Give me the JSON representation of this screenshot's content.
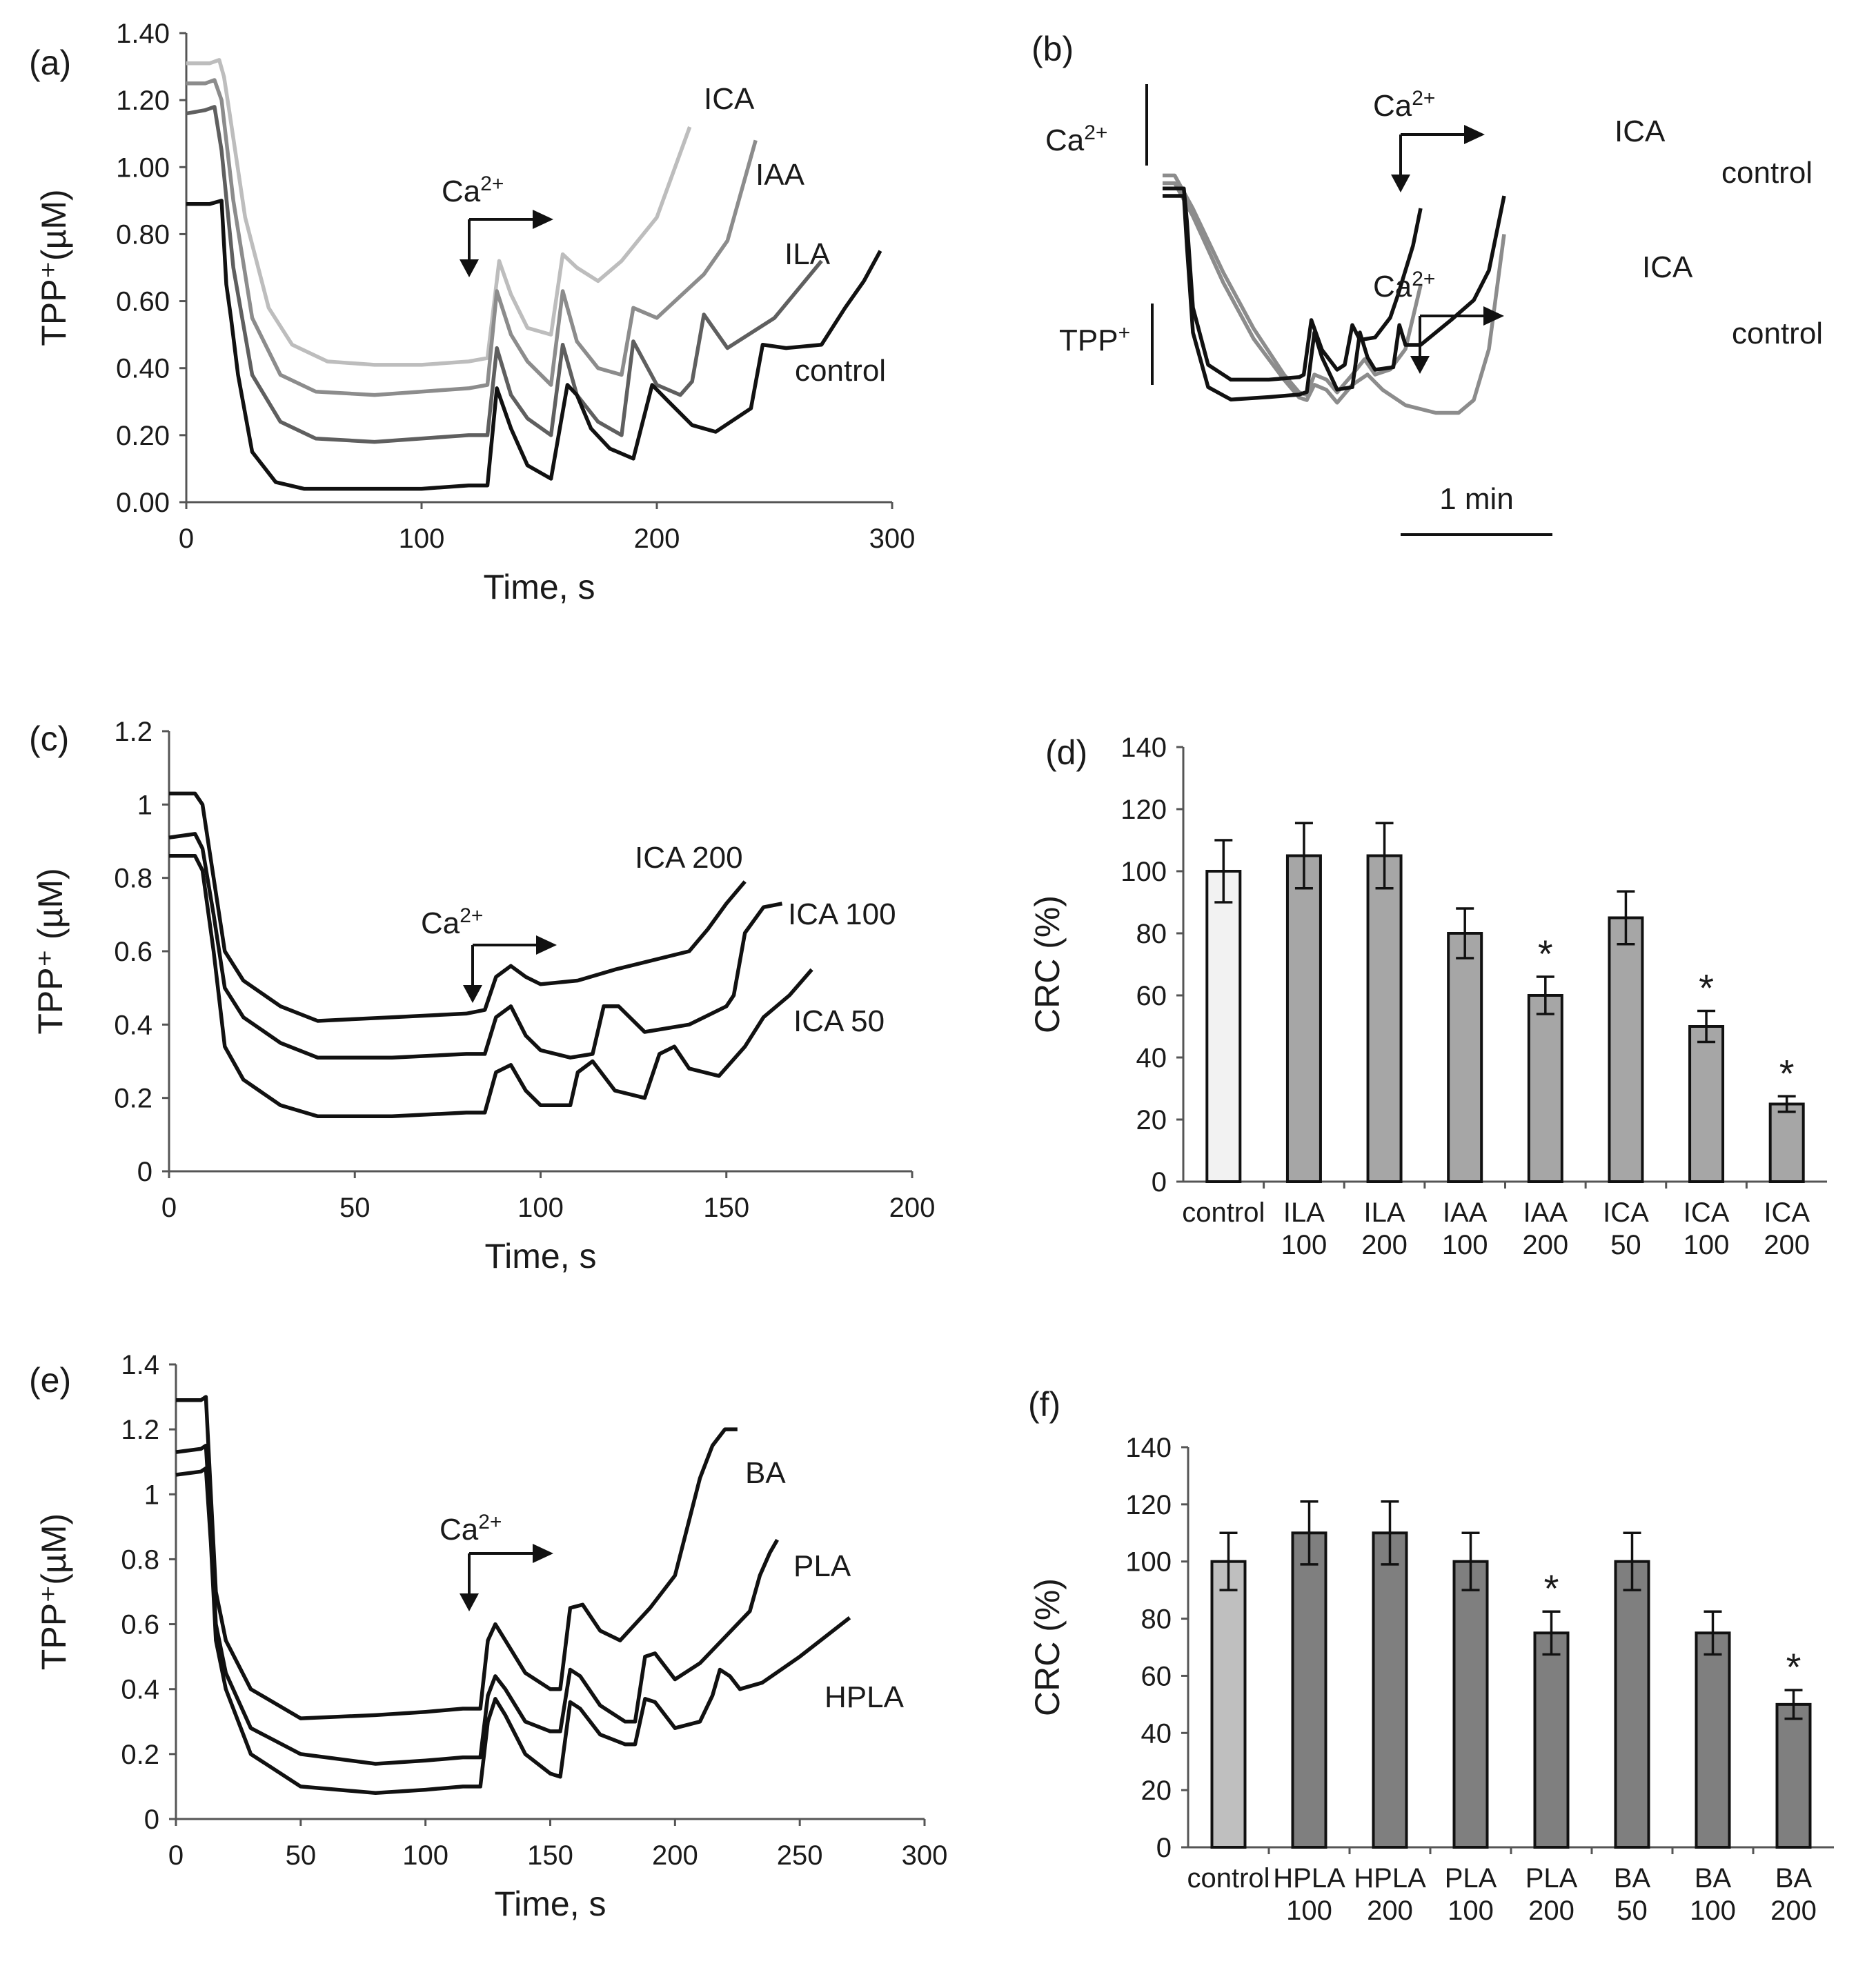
{
  "chart_data": [
    {
      "panel": "(a)",
      "type": "line",
      "xlabel": "Time, s",
      "ylabel": "TPP⁺(µM)",
      "xlim": [
        0,
        300
      ],
      "ylim": [
        0,
        1.4
      ],
      "xticks": [
        "0",
        "100",
        "200",
        "300"
      ],
      "yticks": [
        "0.00",
        "0.20",
        "0.40",
        "0.60",
        "0.80",
        "1.00",
        "1.20",
        "1.40"
      ],
      "annotation": "Ca2+",
      "series": [
        {
          "name": "ICA",
          "color": "#bdbdbd",
          "x": [
            0,
            10,
            14,
            16,
            18,
            25,
            35,
            45,
            60,
            80,
            100,
            120,
            128,
            133,
            138,
            145,
            155,
            160,
            166,
            175,
            185,
            200,
            214
          ],
          "y": [
            1.31,
            1.31,
            1.32,
            1.27,
            1.18,
            0.85,
            0.58,
            0.47,
            0.42,
            0.41,
            0.41,
            0.42,
            0.43,
            0.72,
            0.62,
            0.52,
            0.5,
            0.74,
            0.7,
            0.66,
            0.72,
            0.85,
            1.12
          ]
        },
        {
          "name": "IAA",
          "color": "#8c8c8c",
          "x": [
            0,
            8,
            12,
            15,
            20,
            28,
            40,
            55,
            80,
            100,
            120,
            128,
            132,
            138,
            145,
            155,
            160,
            166,
            175,
            185,
            190,
            200,
            220,
            230,
            242
          ],
          "y": [
            1.25,
            1.25,
            1.26,
            1.2,
            0.9,
            0.55,
            0.38,
            0.33,
            0.32,
            0.33,
            0.34,
            0.35,
            0.63,
            0.5,
            0.42,
            0.35,
            0.63,
            0.48,
            0.4,
            0.38,
            0.58,
            0.55,
            0.68,
            0.78,
            1.08
          ]
        },
        {
          "name": "ILA",
          "color": "#5f5f5f",
          "x": [
            0,
            8,
            12,
            15,
            20,
            28,
            40,
            55,
            80,
            100,
            120,
            128,
            132,
            138,
            145,
            155,
            160,
            166,
            175,
            185,
            190,
            200,
            210,
            215,
            220,
            230,
            250,
            270
          ],
          "y": [
            1.16,
            1.17,
            1.18,
            1.05,
            0.7,
            0.38,
            0.24,
            0.19,
            0.18,
            0.19,
            0.2,
            0.2,
            0.46,
            0.32,
            0.25,
            0.2,
            0.47,
            0.32,
            0.24,
            0.2,
            0.48,
            0.35,
            0.32,
            0.36,
            0.56,
            0.46,
            0.55,
            0.72
          ]
        },
        {
          "name": "control",
          "color": "#111111",
          "x": [
            0,
            10,
            15,
            17,
            19,
            22,
            28,
            38,
            50,
            70,
            100,
            120,
            128,
            132,
            138,
            145,
            155,
            162,
            166,
            172,
            180,
            190,
            198,
            205,
            215,
            225,
            240,
            245,
            255,
            270,
            280,
            288,
            295
          ],
          "y": [
            0.89,
            0.89,
            0.9,
            0.65,
            0.55,
            0.38,
            0.15,
            0.06,
            0.04,
            0.04,
            0.04,
            0.05,
            0.05,
            0.34,
            0.22,
            0.11,
            0.07,
            0.35,
            0.32,
            0.22,
            0.16,
            0.13,
            0.35,
            0.3,
            0.23,
            0.21,
            0.28,
            0.47,
            0.46,
            0.47,
            0.58,
            0.66,
            0.75
          ]
        }
      ]
    },
    {
      "panel": "(b)",
      "type": "line",
      "annotation_upper": "Ca2+",
      "annotation_lower": "Ca2+",
      "scale_label_upper": "Ca²⁺",
      "scale_label_lower": "TPP⁺",
      "time_scale": "1 min",
      "series": [
        {
          "name": "ICA",
          "group": "Ca2+",
          "color": "#8c8c8c",
          "t": [
            0,
            0.08,
            0.2,
            0.4,
            0.6,
            0.8,
            0.9,
            0.95,
            1.0,
            1.08,
            1.15,
            1.25,
            1.33,
            1.4,
            1.5,
            1.6,
            1.7
          ],
          "v": [
            0.98,
            0.98,
            0.85,
            0.6,
            0.38,
            0.2,
            0.13,
            0.12,
            0.2,
            0.18,
            0.13,
            0.2,
            0.26,
            0.2,
            0.22,
            0.3,
            0.55
          ]
        },
        {
          "name": "control",
          "group": "Ca2+",
          "color": "#8c8c8c",
          "t": [
            0,
            0.08,
            0.2,
            0.4,
            0.6,
            0.8,
            0.9,
            0.95,
            1.0,
            1.08,
            1.15,
            1.25,
            1.35,
            1.45,
            1.6,
            1.8,
            1.95,
            2.05,
            2.15,
            2.25
          ],
          "v": [
            0.95,
            0.95,
            0.82,
            0.56,
            0.34,
            0.18,
            0.11,
            0.1,
            0.16,
            0.14,
            0.09,
            0.16,
            0.2,
            0.14,
            0.08,
            0.05,
            0.05,
            0.1,
            0.3,
            0.75
          ]
        },
        {
          "name": "ICA",
          "group": "TPP+",
          "color": "#111111",
          "t": [
            0,
            0.14,
            0.16,
            0.2,
            0.3,
            0.45,
            0.7,
            0.9,
            0.93,
            0.98,
            1.05,
            1.15,
            1.2,
            1.25,
            1.3,
            1.4,
            1.5,
            1.55,
            1.65,
            1.7
          ],
          "v": [
            0.93,
            0.93,
            0.8,
            0.45,
            0.22,
            0.16,
            0.16,
            0.17,
            0.18,
            0.4,
            0.28,
            0.2,
            0.22,
            0.38,
            0.32,
            0.33,
            0.41,
            0.5,
            0.7,
            0.85
          ]
        },
        {
          "name": "control",
          "group": "TPP+",
          "color": "#111111",
          "t": [
            0,
            0.14,
            0.16,
            0.2,
            0.3,
            0.45,
            0.7,
            0.9,
            0.95,
            1.0,
            1.05,
            1.15,
            1.25,
            1.3,
            1.35,
            1.4,
            1.52,
            1.56,
            1.6,
            1.7,
            1.9,
            2.05,
            2.15,
            2.25
          ],
          "v": [
            0.9,
            0.9,
            0.7,
            0.35,
            0.13,
            0.08,
            0.09,
            0.1,
            0.11,
            0.35,
            0.25,
            0.12,
            0.13,
            0.35,
            0.25,
            0.2,
            0.21,
            0.38,
            0.3,
            0.3,
            0.4,
            0.48,
            0.6,
            0.9
          ]
        }
      ]
    },
    {
      "panel": "(c)",
      "type": "line",
      "xlabel": "Time, s",
      "ylabel": "TPP⁺ (µM)",
      "xlim": [
        0,
        200
      ],
      "ylim": [
        0,
        1.2
      ],
      "xticks": [
        "0",
        "50",
        "100",
        "150",
        "200"
      ],
      "yticks": [
        "0",
        "0.2",
        "0.4",
        "0.6",
        "0.8",
        "1",
        "1.2"
      ],
      "annotation": "Ca2+",
      "series": [
        {
          "name": "ICA 200",
          "color": "#111111",
          "x": [
            0,
            7,
            9,
            12,
            15,
            20,
            30,
            40,
            60,
            80,
            85,
            88,
            92,
            96,
            100,
            110,
            120,
            140,
            145,
            150,
            155
          ],
          "y": [
            1.03,
            1.03,
            1.0,
            0.8,
            0.6,
            0.52,
            0.45,
            0.41,
            0.42,
            0.43,
            0.44,
            0.53,
            0.56,
            0.53,
            0.51,
            0.52,
            0.55,
            0.6,
            0.66,
            0.73,
            0.79
          ]
        },
        {
          "name": "ICA 100",
          "color": "#111111",
          "x": [
            0,
            7,
            9,
            12,
            15,
            20,
            30,
            40,
            60,
            80,
            85,
            88,
            92,
            96,
            100,
            108,
            114,
            117,
            121,
            128,
            140,
            150,
            152,
            155,
            160,
            165
          ],
          "y": [
            0.91,
            0.92,
            0.88,
            0.7,
            0.5,
            0.42,
            0.35,
            0.31,
            0.31,
            0.32,
            0.32,
            0.42,
            0.45,
            0.37,
            0.33,
            0.31,
            0.32,
            0.45,
            0.45,
            0.38,
            0.4,
            0.45,
            0.48,
            0.65,
            0.72,
            0.73
          ]
        },
        {
          "name": "ICA 50",
          "color": "#111111",
          "x": [
            0,
            7,
            9,
            12,
            15,
            20,
            30,
            40,
            60,
            80,
            85,
            88,
            92,
            96,
            100,
            108,
            110,
            114,
            120,
            128,
            132,
            136,
            140,
            148,
            155,
            160,
            167,
            173
          ],
          "y": [
            0.86,
            0.86,
            0.82,
            0.6,
            0.34,
            0.25,
            0.18,
            0.15,
            0.15,
            0.16,
            0.16,
            0.27,
            0.29,
            0.22,
            0.18,
            0.18,
            0.27,
            0.3,
            0.22,
            0.2,
            0.32,
            0.34,
            0.28,
            0.26,
            0.34,
            0.42,
            0.48,
            0.55
          ]
        }
      ]
    },
    {
      "panel": "(d)",
      "type": "bar",
      "ylabel": "CRC (%)",
      "ylim": [
        0,
        140
      ],
      "yticks": [
        "0",
        "20",
        "40",
        "60",
        "80",
        "100",
        "120",
        "140"
      ],
      "categories": [
        [
          "control"
        ],
        [
          "ILA",
          "100"
        ],
        [
          "ILA",
          "200"
        ],
        [
          "IAA",
          "100"
        ],
        [
          "IAA",
          "200"
        ],
        [
          "ICA",
          "50"
        ],
        [
          "ICA",
          "100"
        ],
        [
          "ICA",
          "200"
        ]
      ],
      "values": [
        100,
        105,
        105,
        80,
        60,
        85,
        50,
        25
      ],
      "errors": [
        10,
        10.5,
        10.5,
        8,
        6,
        8.5,
        5,
        2.5
      ],
      "significant": [
        false,
        false,
        false,
        false,
        true,
        false,
        true,
        true
      ],
      "significance_marker": "*",
      "colors": [
        "#f2f2f2",
        "#a6a6a6",
        "#a6a6a6",
        "#a6a6a6",
        "#a6a6a6",
        "#a6a6a6",
        "#a6a6a6",
        "#a6a6a6"
      ]
    },
    {
      "panel": "(e)",
      "type": "line",
      "xlabel": "Time, s",
      "ylabel": "TPP⁺(µM)",
      "xlim": [
        0,
        300
      ],
      "ylim": [
        0,
        1.4
      ],
      "xticks": [
        "0",
        "50",
        "100",
        "150",
        "200",
        "250",
        "300"
      ],
      "yticks": [
        "0",
        "0.2",
        "0.4",
        "0.6",
        "0.8",
        "1",
        "1.2",
        "1.4"
      ],
      "annotation": "Ca2+",
      "series": [
        {
          "name": "BA",
          "color": "#111111",
          "x": [
            0,
            10,
            12,
            14,
            16,
            20,
            30,
            50,
            80,
            100,
            115,
            122,
            125,
            128,
            132,
            140,
            150,
            154,
            158,
            163,
            170,
            178,
            190,
            200,
            205,
            210,
            215,
            220,
            225
          ],
          "y": [
            1.29,
            1.29,
            1.3,
            1.0,
            0.7,
            0.55,
            0.4,
            0.31,
            0.32,
            0.33,
            0.34,
            0.34,
            0.55,
            0.6,
            0.55,
            0.45,
            0.4,
            0.4,
            0.65,
            0.66,
            0.58,
            0.55,
            0.65,
            0.75,
            0.9,
            1.05,
            1.15,
            1.2,
            1.2
          ]
        },
        {
          "name": "PLA",
          "color": "#111111",
          "x": [
            0,
            10,
            12,
            14,
            16,
            20,
            30,
            50,
            80,
            100,
            115,
            122,
            125,
            128,
            132,
            140,
            150,
            154,
            158,
            162,
            170,
            180,
            184,
            188,
            192,
            200,
            210,
            220,
            230,
            234,
            238,
            241
          ],
          "y": [
            1.13,
            1.14,
            1.15,
            0.9,
            0.6,
            0.45,
            0.28,
            0.2,
            0.17,
            0.18,
            0.19,
            0.19,
            0.38,
            0.44,
            0.4,
            0.3,
            0.27,
            0.27,
            0.46,
            0.44,
            0.35,
            0.3,
            0.3,
            0.5,
            0.51,
            0.43,
            0.48,
            0.56,
            0.64,
            0.75,
            0.82,
            0.86
          ]
        },
        {
          "name": "HPLA",
          "color": "#111111",
          "x": [
            0,
            10,
            12,
            14,
            16,
            20,
            30,
            50,
            80,
            100,
            115,
            122,
            125,
            128,
            132,
            140,
            150,
            154,
            158,
            162,
            170,
            180,
            184,
            188,
            192,
            200,
            210,
            215,
            218,
            222,
            226,
            235,
            250,
            260,
            270
          ],
          "y": [
            1.06,
            1.07,
            1.08,
            0.85,
            0.55,
            0.4,
            0.2,
            0.1,
            0.08,
            0.09,
            0.1,
            0.1,
            0.3,
            0.37,
            0.32,
            0.2,
            0.14,
            0.13,
            0.36,
            0.34,
            0.26,
            0.23,
            0.23,
            0.37,
            0.36,
            0.28,
            0.3,
            0.38,
            0.46,
            0.44,
            0.4,
            0.42,
            0.5,
            0.56,
            0.62
          ]
        }
      ]
    },
    {
      "panel": "(f)",
      "type": "bar",
      "ylabel": "CRC (%)",
      "ylim": [
        0,
        140
      ],
      "yticks": [
        "0",
        "20",
        "40",
        "60",
        "80",
        "100",
        "120",
        "140"
      ],
      "categories": [
        [
          "control"
        ],
        [
          "HPLA",
          "100"
        ],
        [
          "HPLA",
          "200"
        ],
        [
          "PLA",
          "100"
        ],
        [
          "PLA",
          "200"
        ],
        [
          "BA",
          "50"
        ],
        [
          "BA",
          "100"
        ],
        [
          "BA",
          "200"
        ]
      ],
      "values": [
        100,
        110,
        110,
        100,
        75,
        100,
        75,
        50
      ],
      "errors": [
        10,
        11,
        11,
        10,
        7.5,
        10,
        7.5,
        5
      ],
      "significant": [
        false,
        false,
        false,
        false,
        true,
        false,
        false,
        true
      ],
      "significance_marker": "*",
      "colors": [
        "#bfbfbf",
        "#7f7f7f",
        "#7f7f7f",
        "#7f7f7f",
        "#7f7f7f",
        "#7f7f7f",
        "#7f7f7f",
        "#7f7f7f"
      ]
    }
  ]
}
